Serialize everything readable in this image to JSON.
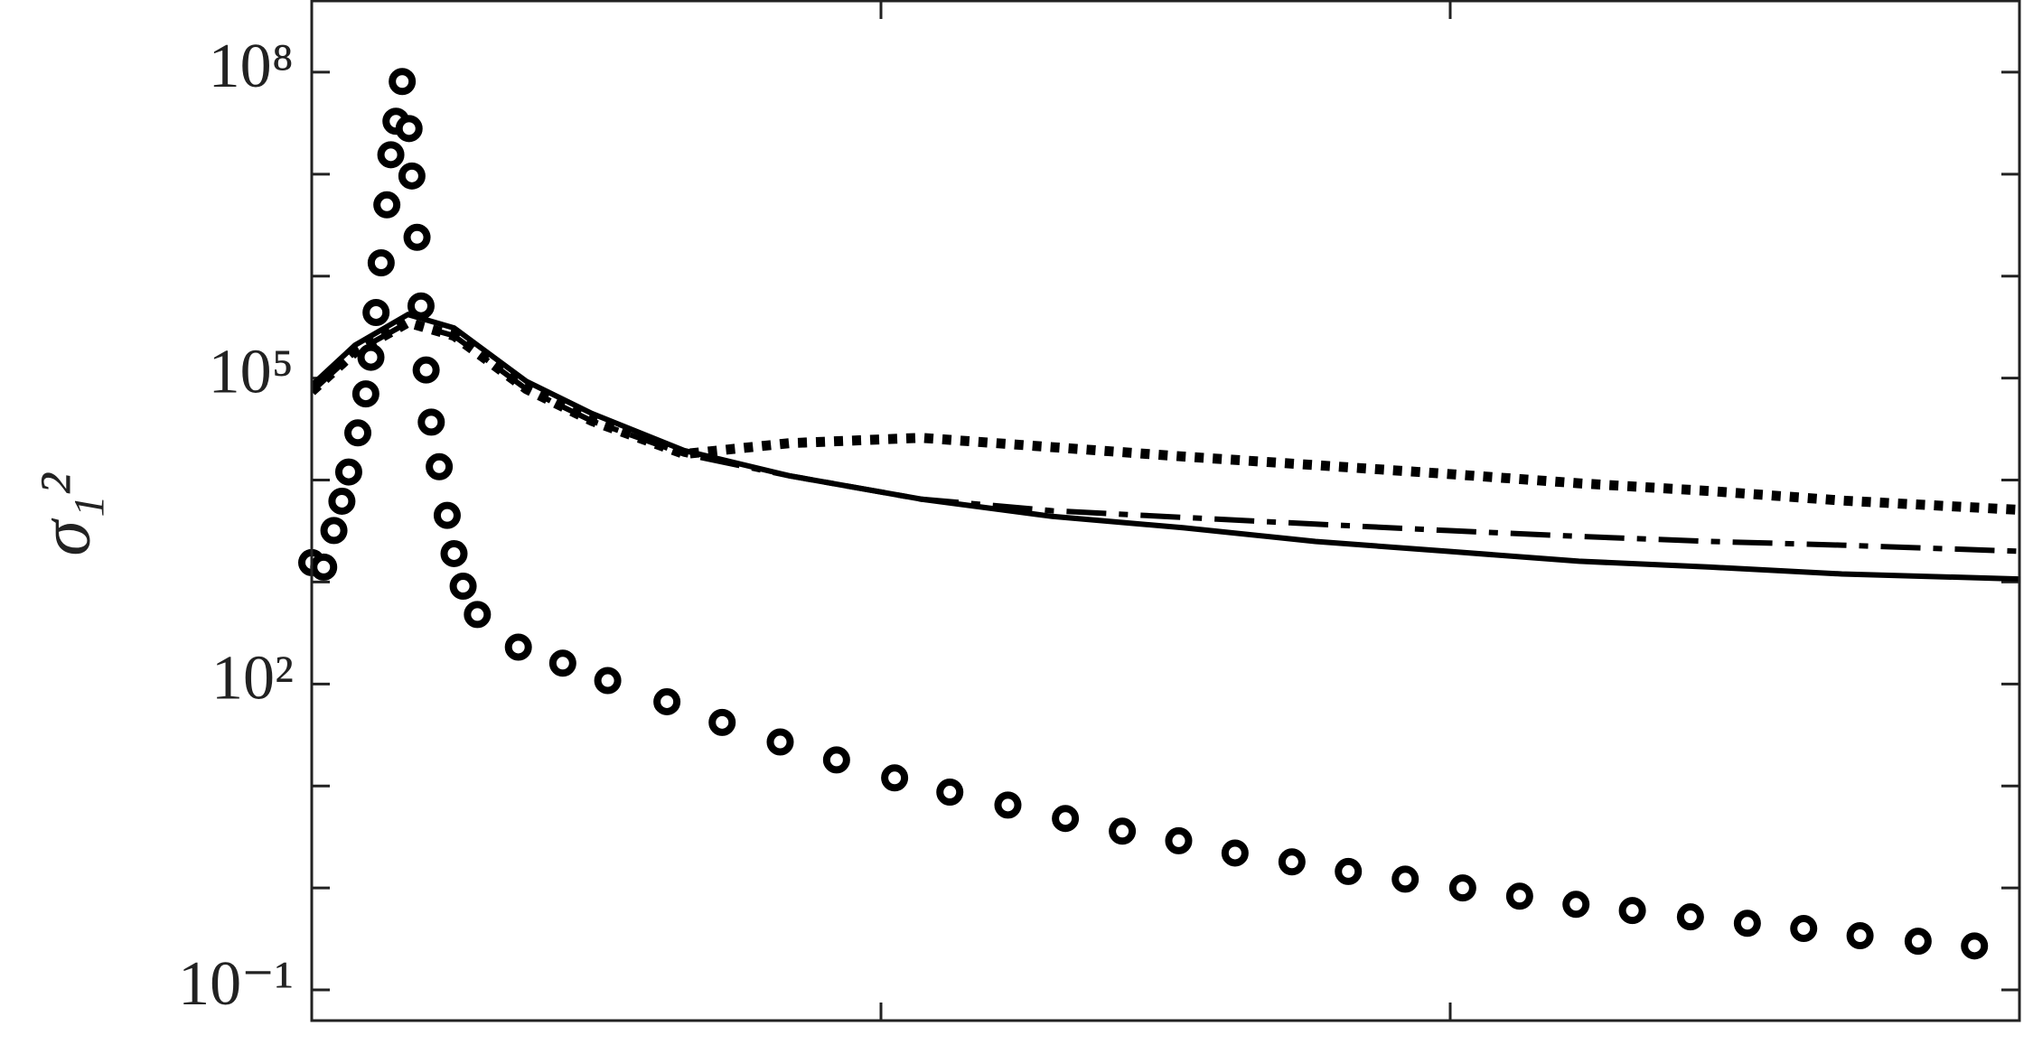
{
  "chart_data": {
    "type": "line",
    "ylabel": "σ₁²",
    "yscale": "log",
    "xlim": [
      0,
      3
    ],
    "xticks": [
      1,
      2
    ],
    "ylim": [
      0.05,
      500000000
    ],
    "yticks": [
      {
        "value": 100000000,
        "label": "10⁸"
      },
      {
        "value": 100000,
        "label": "10⁵"
      },
      {
        "value": 100,
        "label": "10²"
      },
      {
        "value": 0.1,
        "label": "10⁻¹"
      }
    ],
    "yminorticks": [
      10000000,
      1000000,
      10000,
      1000,
      10,
      1
    ],
    "series": [
      {
        "mode": "line",
        "style": "solid",
        "color": "#000000",
        "x": [
          0,
          0.076,
          0.169,
          0.25,
          0.377,
          0.492,
          0.654,
          0.839,
          1.07,
          1.301,
          1.532,
          1.763,
          1.995,
          2.226,
          2.457,
          2.688,
          3.0
        ],
        "values": [
          85000,
          210000,
          420000,
          310000,
          93000,
          45000,
          19500,
          11000,
          6500,
          4400,
          3400,
          2500,
          2000,
          1600,
          1400,
          1200,
          1070
        ]
      },
      {
        "mode": "line",
        "style": "dashdot",
        "color": "#000000",
        "x": [
          0,
          0.076,
          0.169,
          0.25,
          0.377,
          0.492,
          0.654,
          0.839,
          1.07,
          1.301,
          1.532,
          1.763,
          1.995,
          2.226,
          2.457,
          2.688,
          3.0
        ],
        "values": [
          74000,
          180000,
          350000,
          260000,
          78000,
          38000,
          18000,
          11000,
          6500,
          5000,
          4300,
          3700,
          3200,
          2800,
          2500,
          2300,
          2000
        ]
      },
      {
        "mode": "line",
        "style": "dotted",
        "color": "#000000",
        "x": [
          0,
          0.076,
          0.169,
          0.25,
          0.377,
          0.492,
          0.654,
          0.839,
          1.07,
          1.301,
          1.532,
          1.763,
          1.995,
          2.226,
          2.457,
          2.688,
          3.0
        ],
        "values": [
          74000,
          180000,
          350000,
          260000,
          78000,
          38000,
          18000,
          23000,
          26000,
          21000,
          17000,
          14000,
          11500,
          9300,
          7800,
          6300,
          5100
        ]
      },
      {
        "mode": "markers",
        "color": "#000000",
        "x": [
          0,
          0.021,
          0.039,
          0.053,
          0.065,
          0.081,
          0.095,
          0.104,
          0.113,
          0.122,
          0.132,
          0.139,
          0.148,
          0.159,
          0.171,
          0.176,
          0.185,
          0.192,
          0.201,
          0.21,
          0.224,
          0.238,
          0.25,
          0.266,
          0.291,
          0.363,
          0.441,
          0.52,
          0.624,
          0.721,
          0.823,
          0.922,
          1.024,
          1.121,
          1.223,
          1.324,
          1.424,
          1.523,
          1.622,
          1.722,
          1.821,
          1.921,
          2.022,
          2.122,
          2.221,
          2.32,
          2.422,
          2.522,
          2.621,
          2.72,
          2.822,
          2.921
        ],
        "values": [
          1550,
          1400,
          3200,
          6200,
          12000,
          29000,
          70000,
          160000,
          440000,
          1350000,
          5000000,
          15500000,
          33000000,
          81000000,
          28000000,
          9600000,
          2400000,
          510000,
          120000,
          37000,
          13500,
          4500,
          1900,
          910,
          480,
          230,
          160,
          108,
          67,
          42,
          27,
          18,
          12,
          8.7,
          6.5,
          4.8,
          3.6,
          2.9,
          2.2,
          1.8,
          1.45,
          1.22,
          1.0,
          0.83,
          0.69,
          0.6,
          0.52,
          0.45,
          0.4,
          0.34,
          0.3,
          0.27
        ]
      }
    ]
  }
}
